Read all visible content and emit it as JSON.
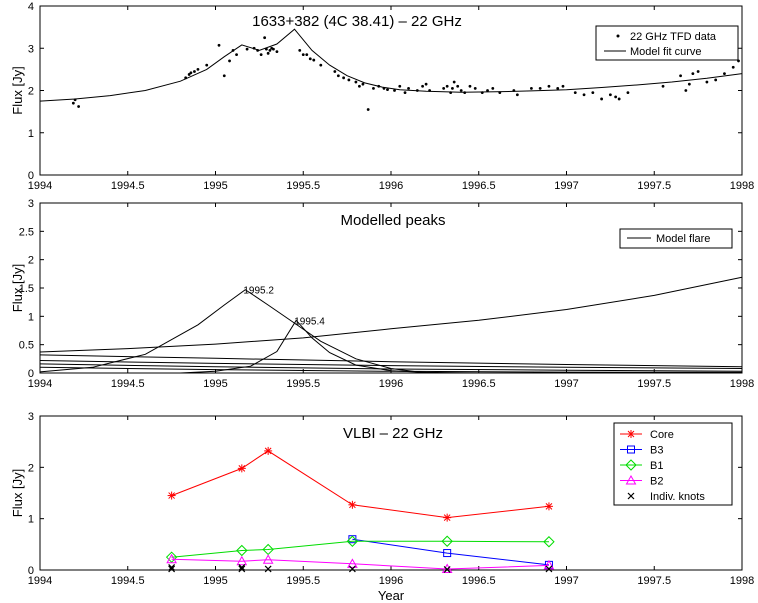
{
  "chart_data": [
    {
      "type": "scatter",
      "title": "1633+382 (4C 38.41) – 22 GHz",
      "xlabel": "",
      "ylabel": "Flux [Jy]",
      "xlim": [
        1994,
        1998
      ],
      "ylim": [
        0,
        4
      ],
      "xticks": [
        "1994",
        "1994.5",
        "1995",
        "1995.5",
        "1996",
        "1996.5",
        "1997",
        "1997.5",
        "1998"
      ],
      "yticks": [
        "0",
        "1",
        "2",
        "3",
        "4"
      ],
      "legend_position": "top-right",
      "legend": [
        "22 GHz TFD data",
        "Model fit curve"
      ],
      "series": [
        {
          "name": "22 GHz TFD data",
          "kind": "points",
          "x": [
            1994.19,
            1994.2,
            1994.22,
            1994.83,
            1994.85,
            1994.86,
            1994.88,
            1994.9,
            1994.95,
            1995.02,
            1995.05,
            1995.08,
            1995.1,
            1995.12,
            1995.18,
            1995.22,
            1995.24,
            1995.26,
            1995.28,
            1995.29,
            1995.3,
            1995.31,
            1995.32,
            1995.33,
            1995.35,
            1995.48,
            1995.5,
            1995.52,
            1995.54,
            1995.56,
            1995.6,
            1995.68,
            1995.7,
            1995.73,
            1995.76,
            1995.8,
            1995.82,
            1995.84,
            1995.87,
            1995.9,
            1995.93,
            1995.96,
            1995.98,
            1996.02,
            1996.05,
            1996.08,
            1996.1,
            1996.15,
            1996.18,
            1996.2,
            1996.22,
            1996.3,
            1996.32,
            1996.34,
            1996.35,
            1996.36,
            1996.38,
            1996.4,
            1996.42,
            1996.45,
            1996.48,
            1996.52,
            1996.55,
            1996.58,
            1996.62,
            1996.7,
            1996.72,
            1996.8,
            1996.85,
            1996.9,
            1996.95,
            1996.98,
            1997.05,
            1997.1,
            1997.15,
            1997.2,
            1997.25,
            1997.28,
            1997.3,
            1997.35,
            1997.55,
            1997.65,
            1997.68,
            1997.7,
            1997.72,
            1997.75,
            1997.8,
            1997.85,
            1997.9,
            1997.95,
            1997.98
          ],
          "y": [
            1.7,
            1.78,
            1.62,
            2.3,
            2.38,
            2.42,
            2.45,
            2.5,
            2.6,
            3.07,
            2.35,
            2.7,
            2.95,
            2.85,
            2.98,
            3.0,
            2.95,
            2.85,
            3.25,
            2.98,
            2.88,
            2.95,
            3.0,
            2.98,
            2.92,
            2.95,
            2.85,
            2.85,
            2.75,
            2.72,
            2.6,
            2.45,
            2.35,
            2.3,
            2.25,
            2.2,
            2.1,
            2.15,
            1.55,
            2.05,
            2.1,
            2.05,
            2.02,
            2.0,
            2.1,
            1.95,
            2.05,
            2.0,
            2.1,
            2.15,
            2.0,
            2.05,
            2.1,
            1.95,
            2.05,
            2.2,
            2.1,
            2.0,
            1.95,
            2.1,
            2.05,
            1.95,
            2.0,
            2.05,
            1.95,
            2.0,
            1.9,
            2.05,
            2.05,
            2.1,
            2.05,
            2.1,
            1.95,
            1.9,
            1.95,
            1.8,
            1.9,
            1.85,
            1.8,
            1.95,
            2.1,
            2.35,
            2.0,
            2.15,
            2.4,
            2.45,
            2.2,
            2.25,
            2.4,
            2.55,
            2.7
          ]
        },
        {
          "name": "Model fit curve",
          "kind": "line",
          "x": [
            1994.0,
            1994.2,
            1994.4,
            1994.6,
            1994.8,
            1994.95,
            1995.05,
            1995.15,
            1995.25,
            1995.35,
            1995.45,
            1995.55,
            1995.65,
            1995.75,
            1995.85,
            1995.95,
            1996.05,
            1996.2,
            1996.4,
            1996.6,
            1996.8,
            1997.0,
            1997.2,
            1997.4,
            1997.6,
            1997.8,
            1998.0
          ],
          "y": [
            1.75,
            1.8,
            1.88,
            2.0,
            2.22,
            2.5,
            2.8,
            3.08,
            2.95,
            3.1,
            3.45,
            2.95,
            2.6,
            2.35,
            2.18,
            2.08,
            2.02,
            1.98,
            1.96,
            1.97,
            1.99,
            2.02,
            2.07,
            2.13,
            2.2,
            2.29,
            2.4
          ]
        }
      ]
    },
    {
      "type": "line",
      "title": "Modelled peaks",
      "xlabel": "",
      "ylabel": "Flux [Jy]",
      "xlim": [
        1994,
        1998
      ],
      "ylim": [
        0,
        3
      ],
      "xticks": [
        "1994",
        "1994.5",
        "1995",
        "1995.5",
        "1996",
        "1996.5",
        "1997",
        "1997.5",
        "1998"
      ],
      "yticks": [
        "0",
        "0.5",
        "1",
        "1.5",
        "2",
        "2.5",
        "3"
      ],
      "legend_position": "top-right",
      "legend": [
        "Model flare"
      ],
      "annotations": [
        {
          "text": "1995.2",
          "x": 1995.17,
          "y": 1.47
        },
        {
          "text": "1995.4",
          "x": 1995.46,
          "y": 0.93
        }
      ],
      "series": [
        {
          "name": "Model flare",
          "x": [
            1994.0,
            1994.5,
            1995.0,
            1995.5,
            1996.0,
            1996.5,
            1997.0,
            1997.5,
            1998.0
          ],
          "y": [
            0.37,
            0.43,
            0.51,
            0.62,
            0.78,
            0.93,
            1.12,
            1.37,
            1.69
          ]
        },
        {
          "x": [
            1994.0,
            1994.3,
            1994.6,
            1994.9,
            1995.05,
            1995.17,
            1995.3,
            1995.45,
            1995.6,
            1995.8,
            1996.0,
            1996.2
          ],
          "y": [
            0.02,
            0.1,
            0.33,
            0.85,
            1.2,
            1.47,
            1.2,
            0.88,
            0.56,
            0.25,
            0.08,
            0.0
          ]
        },
        {
          "x": [
            1994.8,
            1995.0,
            1995.2,
            1995.35,
            1995.46,
            1995.55,
            1995.65,
            1995.8,
            1996.0,
            1996.2,
            1996.5
          ],
          "y": [
            0.0,
            0.03,
            0.12,
            0.38,
            0.93,
            0.62,
            0.36,
            0.14,
            0.04,
            0.01,
            0.0
          ]
        },
        {
          "x": [
            1994.0,
            1995.0,
            1996.0,
            1997.0,
            1998.0
          ],
          "y": [
            0.32,
            0.26,
            0.2,
            0.15,
            0.11
          ]
        },
        {
          "x": [
            1994.0,
            1995.0,
            1996.0,
            1997.0,
            1998.0
          ],
          "y": [
            0.22,
            0.17,
            0.13,
            0.1,
            0.08
          ]
        },
        {
          "x": [
            1994.0,
            1995.0,
            1996.0,
            1997.0,
            1998.0
          ],
          "y": [
            0.16,
            0.11,
            0.07,
            0.05,
            0.03
          ]
        },
        {
          "x": [
            1994.0,
            1995.0,
            1996.0,
            1997.0,
            1998.0
          ],
          "y": [
            0.1,
            0.06,
            0.03,
            0.015,
            0.01
          ]
        }
      ]
    },
    {
      "type": "line",
      "title": "VLBI – 22 GHz",
      "xlabel": "Year",
      "ylabel": "Flux [Jy]",
      "xlim": [
        1994,
        1998
      ],
      "ylim": [
        0,
        3
      ],
      "xticks": [
        "1994",
        "1994.5",
        "1995",
        "1995.5",
        "1996",
        "1996.5",
        "1997",
        "1997.5",
        "1998"
      ],
      "yticks": [
        "0",
        "1",
        "2",
        "3"
      ],
      "legend_position": "top-right",
      "legend": [
        "Core",
        "B3",
        "B1",
        "B2",
        "Indiv. knots"
      ],
      "series": [
        {
          "name": "Core",
          "color": "#ff0000",
          "marker": "star",
          "x": [
            1994.75,
            1995.15,
            1995.3,
            1995.78,
            1996.32,
            1996.9
          ],
          "y": [
            1.45,
            1.98,
            2.32,
            1.27,
            1.02,
            1.24
          ]
        },
        {
          "name": "B3",
          "color": "#0000ff",
          "marker": "square",
          "x": [
            1995.78,
            1996.32,
            1996.9
          ],
          "y": [
            0.6,
            0.33,
            0.1
          ]
        },
        {
          "name": "B1",
          "color": "#00dd00",
          "marker": "diamond",
          "x": [
            1994.75,
            1995.15,
            1995.3,
            1995.78,
            1996.32,
            1996.9
          ],
          "y": [
            0.25,
            0.38,
            0.4,
            0.56,
            0.56,
            0.55
          ]
        },
        {
          "name": "B2",
          "color": "#ff00ff",
          "marker": "triangle",
          "x": [
            1994.75,
            1995.15,
            1995.3,
            1995.78,
            1996.32,
            1996.9
          ],
          "y": [
            0.21,
            0.17,
            0.2,
            0.12,
            0.02,
            0.09
          ]
        },
        {
          "name": "Indiv. knots",
          "color": "#000000",
          "marker": "x",
          "x": [
            1994.75,
            1994.75,
            1995.15,
            1995.15,
            1995.3,
            1995.78,
            1996.32,
            1996.9
          ],
          "y": [
            0.05,
            0.02,
            0.05,
            0.02,
            0.02,
            0.02,
            0.01,
            0.02
          ]
        }
      ]
    }
  ]
}
